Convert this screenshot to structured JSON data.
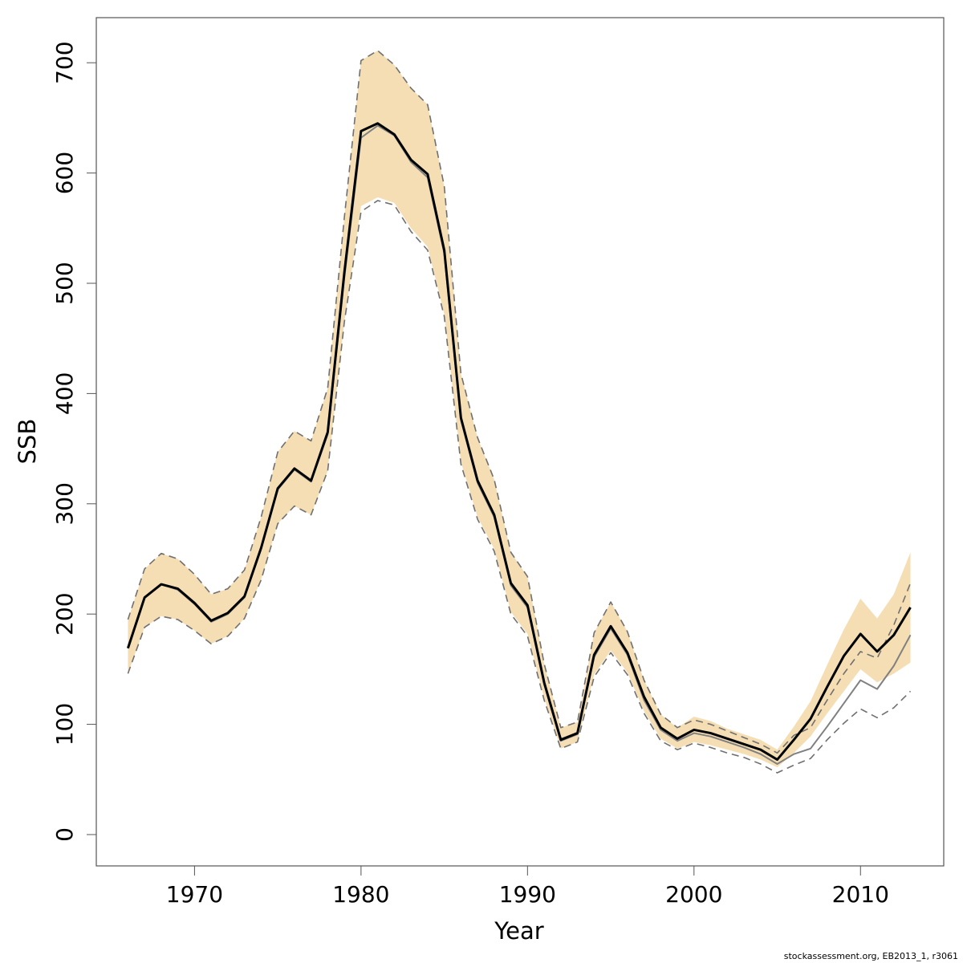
{
  "chart_data": {
    "type": "line",
    "xlabel": "Year",
    "ylabel": "SSB",
    "footnote": "stockassessment.org, EB2013_1, r3061",
    "x": [
      1966,
      1967,
      1968,
      1969,
      1970,
      1971,
      1972,
      1973,
      1974,
      1975,
      1976,
      1977,
      1978,
      1979,
      1980,
      1981,
      1982,
      1983,
      1984,
      1985,
      1986,
      1987,
      1988,
      1989,
      1990,
      1991,
      1992,
      1993,
      1994,
      1995,
      1996,
      1997,
      1998,
      1999,
      2000,
      2001,
      2002,
      2003,
      2004,
      2005,
      2006,
      2007,
      2008,
      2009,
      2010,
      2011,
      2012,
      2013
    ],
    "band": {
      "color": "#f5deb3",
      "upper": [
        195,
        241,
        255,
        250,
        236,
        218,
        223,
        240,
        288,
        347,
        366,
        357,
        405,
        560,
        702,
        711,
        698,
        677,
        662,
        588,
        418,
        360,
        322,
        256,
        234,
        155,
        97,
        102,
        183,
        211,
        184,
        140,
        109,
        97,
        107,
        103,
        96,
        91,
        86,
        77,
        98,
        121,
        154,
        186,
        214,
        196,
        218,
        256
      ],
      "lower": [
        146,
        188,
        198,
        195,
        185,
        173,
        180,
        196,
        231,
        282,
        298,
        290,
        330,
        465,
        570,
        578,
        573,
        550,
        533,
        472,
        338,
        288,
        259,
        202,
        182,
        124,
        78,
        84,
        145,
        167,
        147,
        112,
        87,
        78,
        84,
        81,
        77,
        73,
        68,
        61,
        74,
        89,
        110,
        130,
        150,
        138,
        146,
        156
      ]
    },
    "series": [
      {
        "color": "#000000",
        "dashed": false,
        "width": 3,
        "values": [
          169,
          215,
          227,
          223,
          210,
          194,
          201,
          216,
          260,
          314,
          332,
          321,
          365,
          510,
          638,
          645,
          635,
          612,
          599,
          530,
          378,
          321,
          290,
          228,
          208,
          138,
          86,
          92,
          163,
          189,
          165,
          125,
          97,
          87,
          95,
          92,
          87,
          82,
          77,
          68,
          86,
          105,
          134,
          162,
          182,
          166,
          181,
          206
        ]
      },
      {
        "color": "#808080",
        "dashed": false,
        "width": 2,
        "values": [
          169,
          215,
          227,
          222,
          209,
          193,
          200,
          215,
          259,
          313,
          331,
          320,
          363,
          505,
          632,
          643,
          634,
          610,
          596,
          527,
          376,
          319,
          288,
          226,
          206,
          136,
          85,
          91,
          161,
          187,
          163,
          122,
          95,
          85,
          92,
          89,
          84,
          79,
          73,
          64,
          73,
          78,
          98,
          119,
          140,
          132,
          153,
          181
        ]
      },
      {
        "color": "#707070",
        "dashed": true,
        "width": 1.6,
        "values": [
          195,
          241,
          255,
          250,
          236,
          218,
          223,
          240,
          288,
          347,
          366,
          357,
          405,
          560,
          702,
          711,
          698,
          677,
          662,
          588,
          418,
          360,
          322,
          256,
          234,
          155,
          97,
          102,
          183,
          211,
          184,
          140,
          109,
          97,
          104,
          100,
          94,
          88,
          82,
          74,
          90,
          97,
          122,
          146,
          166,
          160,
          190,
          228
        ]
      },
      {
        "color": "#707070",
        "dashed": true,
        "width": 1.6,
        "values": [
          146,
          188,
          198,
          195,
          185,
          173,
          180,
          196,
          231,
          282,
          298,
          290,
          330,
          465,
          565,
          575,
          571,
          547,
          530,
          470,
          336,
          286,
          257,
          200,
          180,
          122,
          78,
          84,
          143,
          165,
          145,
          110,
          85,
          77,
          83,
          79,
          74,
          70,
          64,
          56,
          63,
          69,
          86,
          101,
          114,
          106,
          115,
          130
        ]
      }
    ],
    "xlim": [
      1964.1,
      2015.0
    ],
    "ylim": [
      -28.4,
      740.9
    ],
    "xticks": [
      1970,
      1980,
      1990,
      2000,
      2010
    ],
    "yticks": [
      0,
      100,
      200,
      300,
      400,
      500,
      600,
      700
    ]
  }
}
